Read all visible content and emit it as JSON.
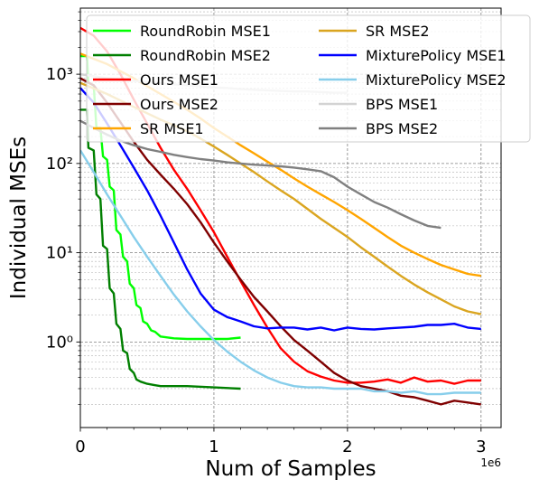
{
  "chart_data": {
    "type": "line",
    "title": "",
    "xlabel": "Num of Samples",
    "ylabel": "Individual MSEs",
    "x_offset_label": "1e6",
    "xlim": [
      0,
      3.15
    ],
    "ylim": [
      0.11,
      5500
    ],
    "yscale": "log",
    "x_ticks": [
      0,
      1,
      2,
      3
    ],
    "x_tick_labels": [
      "0",
      "1",
      "2",
      "3"
    ],
    "y_ticks": [
      1,
      10,
      100,
      1000
    ],
    "y_tick_labels": [
      "10⁰",
      "10¹",
      "10²",
      "10³"
    ],
    "grid": true,
    "legend_placement": "top-right",
    "series": [
      {
        "name": "RoundRobin MSE1",
        "color": "#00ff00",
        "points": [
          [
            0,
            1600
          ],
          [
            0.05,
            1600
          ],
          [
            0.06,
            800
          ],
          [
            0.1,
            750
          ],
          [
            0.12,
            250
          ],
          [
            0.15,
            250
          ],
          [
            0.17,
            120
          ],
          [
            0.2,
            110
          ],
          [
            0.22,
            55
          ],
          [
            0.25,
            50
          ],
          [
            0.27,
            18
          ],
          [
            0.3,
            16
          ],
          [
            0.32,
            9
          ],
          [
            0.35,
            8
          ],
          [
            0.37,
            4.5
          ],
          [
            0.4,
            4
          ],
          [
            0.42,
            2.6
          ],
          [
            0.45,
            2.4
          ],
          [
            0.47,
            1.7
          ],
          [
            0.5,
            1.6
          ],
          [
            0.53,
            1.35
          ],
          [
            0.56,
            1.3
          ],
          [
            0.6,
            1.15
          ],
          [
            0.7,
            1.1
          ],
          [
            0.8,
            1.08
          ],
          [
            0.9,
            1.08
          ],
          [
            1.0,
            1.08
          ],
          [
            1.1,
            1.08
          ],
          [
            1.2,
            1.12
          ]
        ]
      },
      {
        "name": "RoundRobin MSE2",
        "color": "#007f00",
        "points": [
          [
            0,
            400
          ],
          [
            0.05,
            400
          ],
          [
            0.06,
            150
          ],
          [
            0.1,
            140
          ],
          [
            0.12,
            45
          ],
          [
            0.15,
            40
          ],
          [
            0.17,
            12
          ],
          [
            0.2,
            11
          ],
          [
            0.22,
            4
          ],
          [
            0.25,
            3.5
          ],
          [
            0.27,
            1.6
          ],
          [
            0.3,
            1.4
          ],
          [
            0.32,
            0.8
          ],
          [
            0.35,
            0.75
          ],
          [
            0.37,
            0.5
          ],
          [
            0.4,
            0.45
          ],
          [
            0.42,
            0.38
          ],
          [
            0.45,
            0.36
          ],
          [
            0.5,
            0.34
          ],
          [
            0.55,
            0.33
          ],
          [
            0.6,
            0.32
          ],
          [
            0.8,
            0.32
          ],
          [
            1.0,
            0.31
          ],
          [
            1.2,
            0.3
          ]
        ]
      },
      {
        "name": "Ours MSE1",
        "color": "#ff0000",
        "points": [
          [
            0,
            3300
          ],
          [
            0.1,
            2700
          ],
          [
            0.2,
            1800
          ],
          [
            0.3,
            1000
          ],
          [
            0.4,
            520
          ],
          [
            0.5,
            280
          ],
          [
            0.6,
            150
          ],
          [
            0.7,
            85
          ],
          [
            0.8,
            52
          ],
          [
            0.9,
            30
          ],
          [
            1.0,
            17
          ],
          [
            1.1,
            9
          ],
          [
            1.2,
            4.8
          ],
          [
            1.3,
            2.6
          ],
          [
            1.4,
            1.45
          ],
          [
            1.5,
            0.85
          ],
          [
            1.6,
            0.6
          ],
          [
            1.7,
            0.47
          ],
          [
            1.8,
            0.41
          ],
          [
            1.9,
            0.37
          ],
          [
            2.0,
            0.35
          ],
          [
            2.1,
            0.35
          ],
          [
            2.2,
            0.36
          ],
          [
            2.3,
            0.38
          ],
          [
            2.4,
            0.35
          ],
          [
            2.5,
            0.4
          ],
          [
            2.6,
            0.36
          ],
          [
            2.7,
            0.37
          ],
          [
            2.8,
            0.34
          ],
          [
            2.9,
            0.37
          ],
          [
            3.0,
            0.37
          ]
        ]
      },
      {
        "name": "Ours MSE2",
        "color": "#7f0000",
        "points": [
          [
            0,
            900
          ],
          [
            0.1,
            750
          ],
          [
            0.2,
            480
          ],
          [
            0.3,
            290
          ],
          [
            0.4,
            175
          ],
          [
            0.5,
            110
          ],
          [
            0.6,
            75
          ],
          [
            0.7,
            52
          ],
          [
            0.8,
            35
          ],
          [
            0.9,
            22
          ],
          [
            1.0,
            13
          ],
          [
            1.1,
            8
          ],
          [
            1.2,
            5
          ],
          [
            1.3,
            3.2
          ],
          [
            1.4,
            2.2
          ],
          [
            1.5,
            1.5
          ],
          [
            1.6,
            1.05
          ],
          [
            1.7,
            0.8
          ],
          [
            1.8,
            0.6
          ],
          [
            1.9,
            0.45
          ],
          [
            2.0,
            0.37
          ],
          [
            2.1,
            0.32
          ],
          [
            2.2,
            0.3
          ],
          [
            2.3,
            0.28
          ],
          [
            2.4,
            0.25
          ],
          [
            2.5,
            0.24
          ],
          [
            2.6,
            0.22
          ],
          [
            2.7,
            0.2
          ],
          [
            2.8,
            0.22
          ],
          [
            2.9,
            0.21
          ],
          [
            3.0,
            0.2
          ]
        ]
      },
      {
        "name": "SR MSE1",
        "color": "#ffa500",
        "points": [
          [
            0,
            1700
          ],
          [
            0.2,
            1300
          ],
          [
            0.4,
            900
          ],
          [
            0.6,
            600
          ],
          [
            0.8,
            400
          ],
          [
            0.9,
            320
          ],
          [
            1.0,
            250
          ],
          [
            1.1,
            200
          ],
          [
            1.2,
            160
          ],
          [
            1.3,
            130
          ],
          [
            1.4,
            105
          ],
          [
            1.5,
            85
          ],
          [
            1.6,
            68
          ],
          [
            1.7,
            55
          ],
          [
            1.8,
            45
          ],
          [
            1.9,
            37
          ],
          [
            2.0,
            30
          ],
          [
            2.1,
            24
          ],
          [
            2.2,
            19
          ],
          [
            2.3,
            15
          ],
          [
            2.4,
            12
          ],
          [
            2.5,
            10
          ],
          [
            2.6,
            8.5
          ],
          [
            2.7,
            7.3
          ],
          [
            2.8,
            6.5
          ],
          [
            2.9,
            5.8
          ],
          [
            3.0,
            5.5
          ]
        ]
      },
      {
        "name": "SR MSE2",
        "color": "#daa520",
        "points": [
          [
            0,
            800
          ],
          [
            0.2,
            600
          ],
          [
            0.4,
            430
          ],
          [
            0.6,
            310
          ],
          [
            0.8,
            230
          ],
          [
            0.9,
            190
          ],
          [
            1.0,
            155
          ],
          [
            1.1,
            125
          ],
          [
            1.2,
            100
          ],
          [
            1.3,
            80
          ],
          [
            1.4,
            63
          ],
          [
            1.5,
            50
          ],
          [
            1.6,
            40
          ],
          [
            1.7,
            31
          ],
          [
            1.8,
            24
          ],
          [
            1.9,
            19
          ],
          [
            2.0,
            15
          ],
          [
            2.1,
            11.5
          ],
          [
            2.2,
            9
          ],
          [
            2.3,
            7
          ],
          [
            2.4,
            5.5
          ],
          [
            2.5,
            4.4
          ],
          [
            2.6,
            3.6
          ],
          [
            2.7,
            3.0
          ],
          [
            2.8,
            2.5
          ],
          [
            2.9,
            2.2
          ],
          [
            3.0,
            2.05
          ]
        ]
      },
      {
        "name": "MixturePolicy MSE1",
        "color": "#0000ff",
        "points": [
          [
            0,
            700
          ],
          [
            0.1,
            480
          ],
          [
            0.2,
            280
          ],
          [
            0.3,
            160
          ],
          [
            0.4,
            90
          ],
          [
            0.5,
            50
          ],
          [
            0.6,
            26
          ],
          [
            0.7,
            13
          ],
          [
            0.8,
            6.5
          ],
          [
            0.9,
            3.5
          ],
          [
            1.0,
            2.3
          ],
          [
            1.1,
            1.9
          ],
          [
            1.2,
            1.7
          ],
          [
            1.3,
            1.5
          ],
          [
            1.4,
            1.42
          ],
          [
            1.5,
            1.45
          ],
          [
            1.6,
            1.45
          ],
          [
            1.7,
            1.38
          ],
          [
            1.8,
            1.45
          ],
          [
            1.9,
            1.35
          ],
          [
            2.0,
            1.45
          ],
          [
            2.1,
            1.4
          ],
          [
            2.2,
            1.38
          ],
          [
            2.3,
            1.42
          ],
          [
            2.4,
            1.45
          ],
          [
            2.5,
            1.48
          ],
          [
            2.6,
            1.55
          ],
          [
            2.7,
            1.55
          ],
          [
            2.8,
            1.6
          ],
          [
            2.9,
            1.45
          ],
          [
            3.0,
            1.4
          ]
        ]
      },
      {
        "name": "MixturePolicy MSE2",
        "color": "#87ceeb",
        "points": [
          [
            0,
            140
          ],
          [
            0.1,
            80
          ],
          [
            0.2,
            45
          ],
          [
            0.3,
            26
          ],
          [
            0.4,
            15
          ],
          [
            0.5,
            9
          ],
          [
            0.6,
            5.5
          ],
          [
            0.7,
            3.4
          ],
          [
            0.8,
            2.2
          ],
          [
            0.9,
            1.5
          ],
          [
            1.0,
            1.05
          ],
          [
            1.1,
            0.78
          ],
          [
            1.2,
            0.6
          ],
          [
            1.3,
            0.48
          ],
          [
            1.4,
            0.4
          ],
          [
            1.5,
            0.35
          ],
          [
            1.6,
            0.32
          ],
          [
            1.7,
            0.31
          ],
          [
            1.8,
            0.31
          ],
          [
            1.9,
            0.3
          ],
          [
            2.0,
            0.3
          ],
          [
            2.1,
            0.3
          ],
          [
            2.2,
            0.28
          ],
          [
            2.3,
            0.28
          ],
          [
            2.4,
            0.27
          ],
          [
            2.5,
            0.28
          ],
          [
            2.6,
            0.26
          ],
          [
            2.7,
            0.26
          ],
          [
            2.8,
            0.27
          ],
          [
            2.9,
            0.27
          ],
          [
            3.0,
            0.27
          ]
        ]
      },
      {
        "name": "BPS MSE1",
        "color": "#d3d3d3",
        "points": [
          [
            0,
            1000
          ],
          [
            0.1,
            950
          ],
          [
            0.2,
            900
          ],
          [
            0.3,
            870
          ],
          [
            0.4,
            840
          ],
          [
            0.5,
            820
          ],
          [
            0.6,
            790
          ],
          [
            0.7,
            770
          ],
          [
            0.8,
            750
          ],
          [
            0.9,
            730
          ],
          [
            1.0,
            710
          ],
          [
            1.1,
            700
          ],
          [
            1.2,
            680
          ],
          [
            1.3,
            670
          ],
          [
            1.4,
            660
          ],
          [
            1.5,
            650
          ],
          [
            1.6,
            640
          ],
          [
            1.7,
            640
          ],
          [
            1.8,
            630
          ],
          [
            1.9,
            620
          ],
          [
            2.0,
            620
          ]
        ]
      },
      {
        "name": "BPS MSE2",
        "color": "#808080",
        "points": [
          [
            0,
            300
          ],
          [
            0.1,
            250
          ],
          [
            0.2,
            210
          ],
          [
            0.3,
            180
          ],
          [
            0.4,
            160
          ],
          [
            0.5,
            145
          ],
          [
            0.6,
            135
          ],
          [
            0.7,
            125
          ],
          [
            0.8,
            118
          ],
          [
            0.9,
            112
          ],
          [
            1.0,
            108
          ],
          [
            1.1,
            103
          ],
          [
            1.2,
            100
          ],
          [
            1.3,
            97
          ],
          [
            1.4,
            95
          ],
          [
            1.5,
            93
          ],
          [
            1.6,
            90
          ],
          [
            1.7,
            86
          ],
          [
            1.8,
            82
          ],
          [
            1.9,
            70
          ],
          [
            2.0,
            55
          ],
          [
            2.1,
            45
          ],
          [
            2.2,
            37
          ],
          [
            2.3,
            32
          ],
          [
            2.4,
            27
          ],
          [
            2.5,
            23
          ],
          [
            2.6,
            20
          ],
          [
            2.7,
            19
          ]
        ]
      }
    ]
  }
}
